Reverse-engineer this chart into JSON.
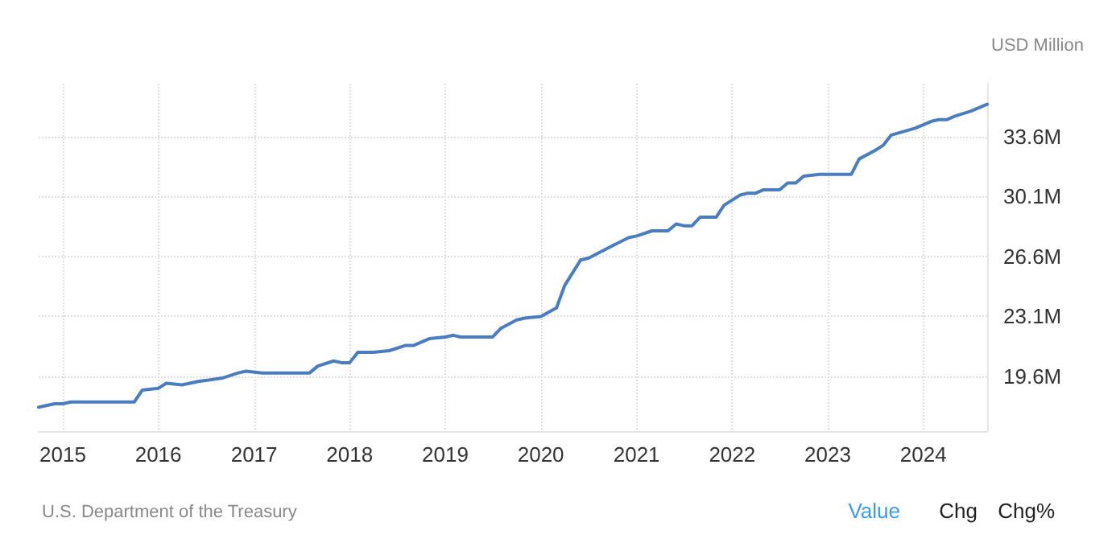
{
  "chart_data": {
    "type": "line",
    "ylabel": "USD Million",
    "x": [
      "2014-10",
      "2014-12",
      "2015-01",
      "2015-02",
      "2015-10",
      "2015-11",
      "2016-01",
      "2016-02",
      "2016-04",
      "2016-06",
      "2016-09",
      "2016-11",
      "2016-12",
      "2017-02",
      "2017-03",
      "2017-08",
      "2017-09",
      "2017-11",
      "2017-12",
      "2018-01",
      "2018-02",
      "2018-04",
      "2018-06",
      "2018-08",
      "2018-09",
      "2018-11",
      "2019-01",
      "2019-02",
      "2019-03",
      "2019-07",
      "2019-08",
      "2019-10",
      "2019-11",
      "2020-01",
      "2020-03",
      "2020-04",
      "2020-06",
      "2020-07",
      "2020-09",
      "2020-12",
      "2021-01",
      "2021-03",
      "2021-05",
      "2021-06",
      "2021-07",
      "2021-08",
      "2021-09",
      "2021-11",
      "2021-12",
      "2022-02",
      "2022-03",
      "2022-04",
      "2022-05",
      "2022-07",
      "2022-08",
      "2022-09",
      "2022-10",
      "2022-12",
      "2023-04",
      "2023-05",
      "2023-07",
      "2023-08",
      "2023-09",
      "2023-12",
      "2024-02",
      "2024-03",
      "2024-04",
      "2024-05",
      "2024-07",
      "2024-08",
      "2024-09"
    ],
    "series": [
      {
        "color": "#4a7cc0",
        "values": [
          17.8,
          18.0,
          18.0,
          18.1,
          18.1,
          18.8,
          18.9,
          19.2,
          19.1,
          19.3,
          19.5,
          19.8,
          19.9,
          19.8,
          19.8,
          19.8,
          20.2,
          20.5,
          20.4,
          20.4,
          21.0,
          21.0,
          21.1,
          21.4,
          21.4,
          21.8,
          21.9,
          22.0,
          21.9,
          21.9,
          22.4,
          22.9,
          23.0,
          23.1,
          23.6,
          24.9,
          26.4,
          26.5,
          27.0,
          27.7,
          27.8,
          28.1,
          28.1,
          28.5,
          28.4,
          28.4,
          28.9,
          28.9,
          29.6,
          30.2,
          30.3,
          30.3,
          30.5,
          30.5,
          30.9,
          30.9,
          31.3,
          31.4,
          31.4,
          32.3,
          32.8,
          33.1,
          33.7,
          34.1,
          34.5,
          34.6,
          34.6,
          34.8,
          35.1,
          35.3,
          35.5
        ]
      }
    ],
    "xlim": [
      "2014-10",
      "2024-09"
    ],
    "xticks": [
      {
        "value": "2015-01",
        "label": "2015"
      },
      {
        "value": "2016-01",
        "label": "2016"
      },
      {
        "value": "2017-01",
        "label": "2017"
      },
      {
        "value": "2018-01",
        "label": "2018"
      },
      {
        "value": "2019-01",
        "label": "2019"
      },
      {
        "value": "2020-01",
        "label": "2020"
      },
      {
        "value": "2021-01",
        "label": "2021"
      },
      {
        "value": "2022-01",
        "label": "2022"
      },
      {
        "value": "2023-01",
        "label": "2023"
      },
      {
        "value": "2024-01",
        "label": "2024"
      }
    ],
    "ylim": [
      16.4,
      36.7
    ],
    "yticks": [
      {
        "value": 19.6,
        "label": "19.6M"
      },
      {
        "value": 23.1,
        "label": "23.1M"
      },
      {
        "value": 26.6,
        "label": "26.6M"
      },
      {
        "value": 30.1,
        "label": "30.1M"
      },
      {
        "value": 33.6,
        "label": "33.6M"
      }
    ],
    "grid": true,
    "marker": "none",
    "line_style": "solid",
    "annotations": [
      "U.S. Department of the Treasury",
      "Value",
      "Chg",
      "Chg%"
    ]
  }
}
